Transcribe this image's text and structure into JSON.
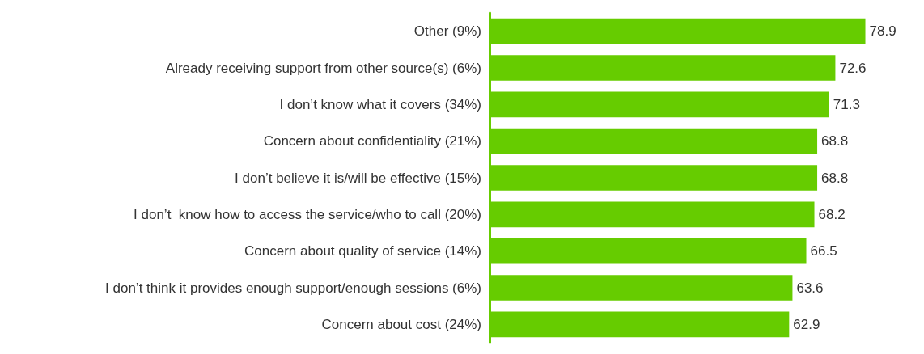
{
  "chart_data": {
    "type": "bar",
    "orientation": "horizontal",
    "categories": [
      "Other (9%)",
      "Already receiving support from other source(s) (6%)",
      "I don’t know what it covers (34%)",
      "Concern about confidentiality (21%)",
      "I don’t believe it is/will be effective (15%)",
      "I don’t  know how to access the service/who to call (20%)",
      "Concern about quality of service (14%)",
      "I don’t think it provides enough support/enough sessions (6%)",
      "Concern about cost (24%)"
    ],
    "values": [
      78.9,
      72.6,
      71.3,
      68.8,
      68.8,
      68.2,
      66.5,
      63.6,
      62.9
    ],
    "color": "#66cc00",
    "data_labels": true
  }
}
